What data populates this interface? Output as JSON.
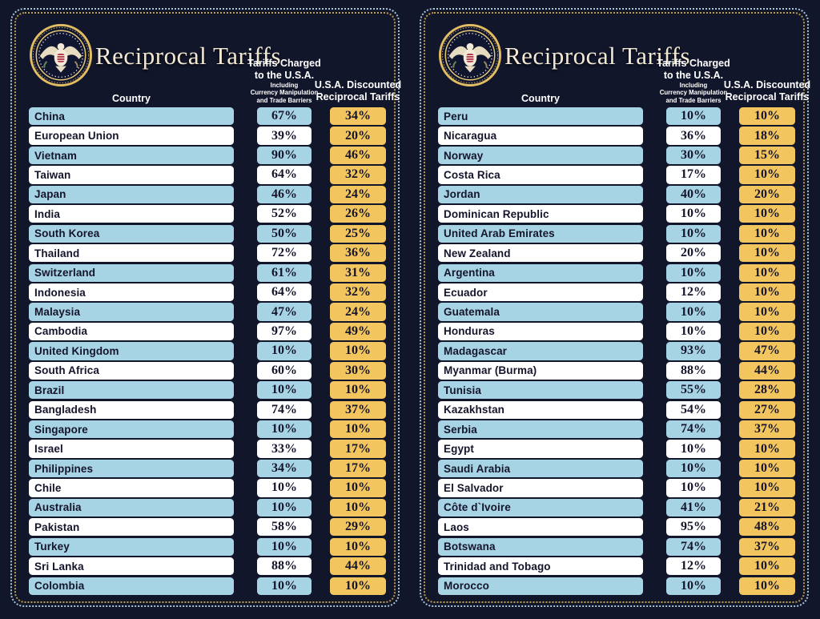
{
  "colors": {
    "background": "#12162b",
    "row_blue": "#a7d4e4",
    "row_white": "#ffffff",
    "badge_yellow": "#f2c55e",
    "border_outer_dotted": "#a9c6d6",
    "border_inner_dotted": "#b9984f",
    "title_cream": "#f2e9d4",
    "header_text": "#ffffff",
    "cell_text": "#14142b"
  },
  "chart_data": [
    {
      "type": "table",
      "title": "Reciprocal Tariffs",
      "columns": {
        "country": "Country",
        "charged": [
          "Tariffs Charged",
          "to the U.S.A."
        ],
        "charged_note": [
          "Including",
          "Currency Manipulation",
          "and Trade Barriers"
        ],
        "discounted": [
          "U.S.A. Discounted",
          "Reciprocal Tariffs"
        ]
      },
      "rows": [
        [
          "China",
          "67%",
          "34%"
        ],
        [
          "European Union",
          "39%",
          "20%"
        ],
        [
          "Vietnam",
          "90%",
          "46%"
        ],
        [
          "Taiwan",
          "64%",
          "32%"
        ],
        [
          "Japan",
          "46%",
          "24%"
        ],
        [
          "India",
          "52%",
          "26%"
        ],
        [
          "South Korea",
          "50%",
          "25%"
        ],
        [
          "Thailand",
          "72%",
          "36%"
        ],
        [
          "Switzerland",
          "61%",
          "31%"
        ],
        [
          "Indonesia",
          "64%",
          "32%"
        ],
        [
          "Malaysia",
          "47%",
          "24%"
        ],
        [
          "Cambodia",
          "97%",
          "49%"
        ],
        [
          "United Kingdom",
          "10%",
          "10%"
        ],
        [
          "South Africa",
          "60%",
          "30%"
        ],
        [
          "Brazil",
          "10%",
          "10%"
        ],
        [
          "Bangladesh",
          "74%",
          "37%"
        ],
        [
          "Singapore",
          "10%",
          "10%"
        ],
        [
          "Israel",
          "33%",
          "17%"
        ],
        [
          "Philippines",
          "34%",
          "17%"
        ],
        [
          "Chile",
          "10%",
          "10%"
        ],
        [
          "Australia",
          "10%",
          "10%"
        ],
        [
          "Pakistan",
          "58%",
          "29%"
        ],
        [
          "Turkey",
          "10%",
          "10%"
        ],
        [
          "Sri Lanka",
          "88%",
          "44%"
        ],
        [
          "Colombia",
          "10%",
          "10%"
        ]
      ]
    },
    {
      "type": "table",
      "title": "Reciprocal Tariffs",
      "columns": {
        "country": "Country",
        "charged": [
          "Tariffs Charged",
          "to the U.S.A."
        ],
        "charged_note": [
          "Including",
          "Currency Manipulation",
          "and Trade Barriers"
        ],
        "discounted": [
          "U.S.A. Discounted",
          "Reciprocal Tariffs"
        ]
      },
      "rows": [
        [
          "Peru",
          "10%",
          "10%"
        ],
        [
          "Nicaragua",
          "36%",
          "18%"
        ],
        [
          "Norway",
          "30%",
          "15%"
        ],
        [
          "Costa Rica",
          "17%",
          "10%"
        ],
        [
          "Jordan",
          "40%",
          "20%"
        ],
        [
          "Dominican Republic",
          "10%",
          "10%"
        ],
        [
          "United Arab Emirates",
          "10%",
          "10%"
        ],
        [
          "New Zealand",
          "20%",
          "10%"
        ],
        [
          "Argentina",
          "10%",
          "10%"
        ],
        [
          "Ecuador",
          "12%",
          "10%"
        ],
        [
          "Guatemala",
          "10%",
          "10%"
        ],
        [
          "Honduras",
          "10%",
          "10%"
        ],
        [
          "Madagascar",
          "93%",
          "47%"
        ],
        [
          "Myanmar (Burma)",
          "88%",
          "44%"
        ],
        [
          "Tunisia",
          "55%",
          "28%"
        ],
        [
          "Kazakhstan",
          "54%",
          "27%"
        ],
        [
          "Serbia",
          "74%",
          "37%"
        ],
        [
          "Egypt",
          "10%",
          "10%"
        ],
        [
          "Saudi Arabia",
          "10%",
          "10%"
        ],
        [
          "El Salvador",
          "10%",
          "10%"
        ],
        [
          "Côte d`Ivoire",
          "41%",
          "21%"
        ],
        [
          "Laos",
          "95%",
          "48%"
        ],
        [
          "Botswana",
          "74%",
          "37%"
        ],
        [
          "Trinidad and Tobago",
          "12%",
          "10%"
        ],
        [
          "Morocco",
          "10%",
          "10%"
        ]
      ]
    }
  ]
}
